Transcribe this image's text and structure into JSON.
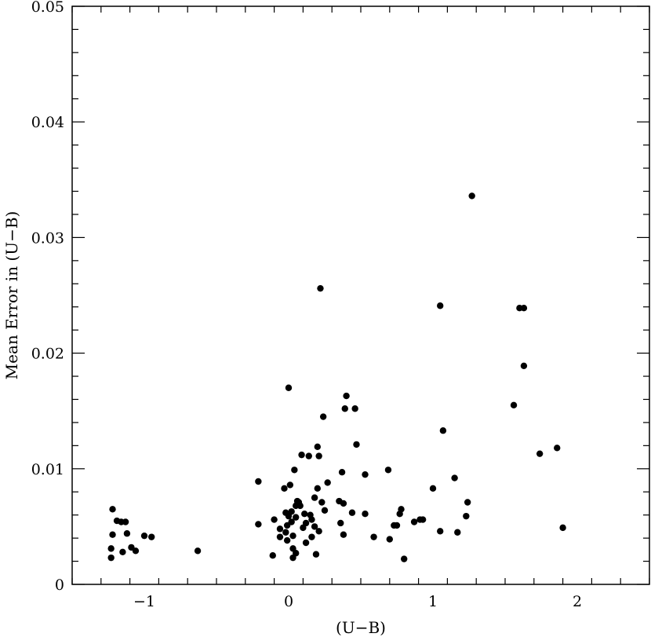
{
  "chart_data": {
    "type": "scatter",
    "title": "",
    "xlabel": "(U−B)",
    "ylabel": "Mean Error in (U−B)",
    "xlim": [
      -1.5,
      2.5
    ],
    "ylim": [
      0,
      0.05
    ],
    "x_ticks": [
      {
        "value": -1,
        "label": "−1"
      },
      {
        "value": 0,
        "label": "0"
      },
      {
        "value": 1,
        "label": "1"
      },
      {
        "value": 2,
        "label": "2"
      }
    ],
    "y_ticks": [
      {
        "value": 0,
        "label": "0"
      },
      {
        "value": 0.01,
        "label": "0.01"
      },
      {
        "value": 0.02,
        "label": "0.02"
      },
      {
        "value": 0.03,
        "label": "0.03"
      },
      {
        "value": 0.04,
        "label": "0.04"
      },
      {
        "value": 0.05,
        "label": "0.05"
      }
    ],
    "x_minor_step": 0.2,
    "y_minor_step": 0.002,
    "grid": false,
    "marker_color": "#000000",
    "points": [
      [
        -1.22,
        0.0065
      ],
      [
        -1.19,
        0.0055
      ],
      [
        -1.16,
        0.0054
      ],
      [
        -1.13,
        0.0054
      ],
      [
        -1.22,
        0.0043
      ],
      [
        -1.12,
        0.0044
      ],
      [
        -1.23,
        0.0031
      ],
      [
        -1.09,
        0.0032
      ],
      [
        -1.06,
        0.0029
      ],
      [
        -1.0,
        0.0042
      ],
      [
        -0.95,
        0.0041
      ],
      [
        -1.15,
        0.0028
      ],
      [
        -1.23,
        0.0023
      ],
      [
        -0.63,
        0.0029
      ],
      [
        -0.21,
        0.0089
      ],
      [
        -0.21,
        0.0052
      ],
      [
        -0.1,
        0.0056
      ],
      [
        -0.11,
        0.0025
      ],
      [
        -0.06,
        0.0048
      ],
      [
        -0.06,
        0.0041
      ],
      [
        -0.03,
        0.0083
      ],
      [
        -0.02,
        0.0062
      ],
      [
        -0.02,
        0.0045
      ],
      [
        -0.01,
        0.0038
      ],
      [
        -0.01,
        0.0051
      ],
      [
        0.0,
        0.017
      ],
      [
        0.0,
        0.0059
      ],
      [
        0.01,
        0.0086
      ],
      [
        0.02,
        0.0063
      ],
      [
        0.02,
        0.0054
      ],
      [
        0.03,
        0.0042
      ],
      [
        0.03,
        0.0031
      ],
      [
        0.03,
        0.0023
      ],
      [
        0.04,
        0.0099
      ],
      [
        0.05,
        0.0068
      ],
      [
        0.05,
        0.0058
      ],
      [
        0.05,
        0.0027
      ],
      [
        0.06,
        0.0072
      ],
      [
        0.07,
        0.0071
      ],
      [
        0.08,
        0.0068
      ],
      [
        0.09,
        0.0112
      ],
      [
        0.1,
        0.0049
      ],
      [
        0.11,
        0.0061
      ],
      [
        0.12,
        0.0053
      ],
      [
        0.12,
        0.0036
      ],
      [
        0.14,
        0.0111
      ],
      [
        0.15,
        0.006
      ],
      [
        0.16,
        0.0056
      ],
      [
        0.16,
        0.0041
      ],
      [
        0.18,
        0.0075
      ],
      [
        0.18,
        0.005
      ],
      [
        0.19,
        0.0026
      ],
      [
        0.2,
        0.0083
      ],
      [
        0.2,
        0.0119
      ],
      [
        0.21,
        0.0111
      ],
      [
        0.21,
        0.0046
      ],
      [
        0.22,
        0.0256
      ],
      [
        0.23,
        0.0071
      ],
      [
        0.24,
        0.0145
      ],
      [
        0.25,
        0.0064
      ],
      [
        0.27,
        0.0088
      ],
      [
        0.35,
        0.0072
      ],
      [
        0.36,
        0.0053
      ],
      [
        0.37,
        0.0097
      ],
      [
        0.38,
        0.007
      ],
      [
        0.38,
        0.0043
      ],
      [
        0.39,
        0.0152
      ],
      [
        0.4,
        0.0163
      ],
      [
        0.44,
        0.0062
      ],
      [
        0.46,
        0.0152
      ],
      [
        0.47,
        0.0121
      ],
      [
        0.53,
        0.0095
      ],
      [
        0.53,
        0.0061
      ],
      [
        0.59,
        0.0041
      ],
      [
        0.69,
        0.0099
      ],
      [
        0.7,
        0.0039
      ],
      [
        0.73,
        0.0051
      ],
      [
        0.75,
        0.0051
      ],
      [
        0.77,
        0.0061
      ],
      [
        0.78,
        0.0065
      ],
      [
        0.8,
        0.0022
      ],
      [
        0.87,
        0.0054
      ],
      [
        0.91,
        0.0056
      ],
      [
        0.93,
        0.0056
      ],
      [
        1.0,
        0.0083
      ],
      [
        1.05,
        0.0241
      ],
      [
        1.05,
        0.0046
      ],
      [
        1.07,
        0.0133
      ],
      [
        1.15,
        0.0092
      ],
      [
        1.17,
        0.0045
      ],
      [
        1.23,
        0.0059
      ],
      [
        1.24,
        0.0071
      ],
      [
        1.27,
        0.0336
      ],
      [
        1.56,
        0.0155
      ],
      [
        1.6,
        0.0239
      ],
      [
        1.63,
        0.0239
      ],
      [
        1.63,
        0.0189
      ],
      [
        1.74,
        0.0113
      ],
      [
        1.86,
        0.0118
      ],
      [
        1.9,
        0.0049
      ]
    ]
  }
}
